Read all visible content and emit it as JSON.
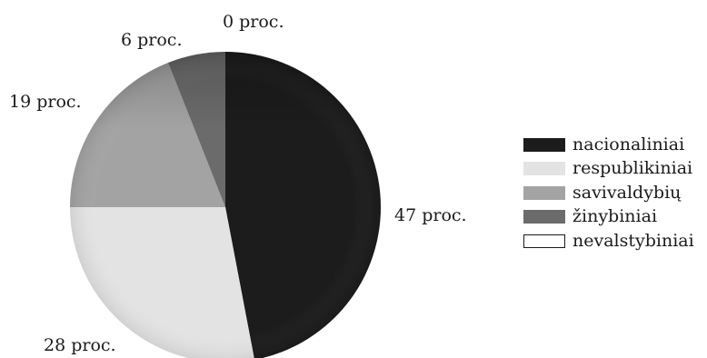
{
  "chart_data": {
    "type": "pie",
    "categories": [
      "nacionaliniai",
      "respublikiniai",
      "savivaldybių",
      "žinybiniai",
      "nevalstybiniai"
    ],
    "values": [
      47,
      28,
      19,
      6,
      0
    ],
    "value_labels": [
      "47 proc.",
      "28 proc.",
      "19 proc.",
      "6 proc.",
      "0 proc."
    ],
    "colors": [
      "#1c1c1c",
      "#e3e3e3",
      "#a3a3a3",
      "#6b6b6b",
      "#ffffff"
    ],
    "legend": {
      "position": "right",
      "items": [
        "nacionaliniai",
        "respublikiniai",
        "savivaldybių",
        "žinybiniai",
        "nevalstybiniai"
      ]
    },
    "title": "",
    "start": "12 o'clock",
    "direction": "clockwise"
  }
}
